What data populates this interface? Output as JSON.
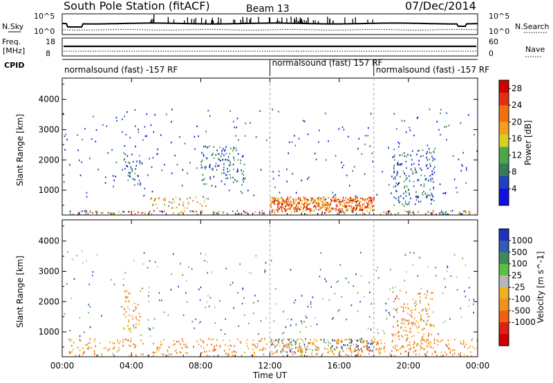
{
  "header": {
    "station": "South Pole Station (fitACF)",
    "beam": "Beam 13",
    "date": "07/Dec/2014"
  },
  "strip_panels": {
    "nsky": {
      "label": "N.Sky",
      "top_tick": "10^5",
      "bottom_tick": "10^0"
    },
    "nsearch": {
      "label": "N.Search",
      "top_tick": "10^5",
      "bottom_tick": "10^0"
    },
    "freq": {
      "label": "Freq.",
      "unit": "[MHz]",
      "top_tick": "18",
      "bottom_tick": "8"
    },
    "nave": {
      "label": "Nave",
      "top_tick": "60",
      "bottom_tick": "0"
    }
  },
  "cpid": {
    "label": "CPID",
    "segments": [
      {
        "text": "normalsound (fast) -157 RF",
        "start_hour": 0.0
      },
      {
        "text": "normalsound (fast) 157 RF",
        "start_hour": 12.0
      },
      {
        "text": "normalsound (fast) -157 RF",
        "start_hour": 18.0
      }
    ]
  },
  "colors": {
    "power": [
      "#1010e0",
      "#2040c0",
      "#3a7a5a",
      "#4aa84a",
      "#d8d020",
      "#f0a020",
      "#f07010",
      "#e03010",
      "#d00000"
    ],
    "velocity": [
      "#2030c0",
      "#2f5db0",
      "#3f8a5a",
      "#5cc040",
      "#b8b8b8",
      "#f0b020",
      "#f09020",
      "#f06010",
      "#e02010",
      "#d00000"
    ]
  },
  "chart_data": [
    {
      "type": "heatmap",
      "name": "power",
      "ylabel": "Slant Range [km]",
      "xlabel": "Time UT",
      "xlim": [
        0,
        24
      ],
      "ylim": [
        180,
        4700
      ],
      "x_ticks": [
        "00:00",
        "04:00",
        "08:00",
        "12:00",
        "16:00",
        "20:00",
        "00:00"
      ],
      "y_ticks": [
        1000,
        2000,
        3000,
        4000
      ],
      "colorbar": {
        "label": "Power [dB]",
        "ticks": [
          4,
          8,
          12,
          16,
          20,
          24,
          28
        ],
        "range": [
          0,
          30
        ]
      },
      "regions": [
        {
          "t0": 0.3,
          "t1": 24,
          "r0": 180,
          "r1": 350,
          "level": "mixed"
        },
        {
          "t0": 12.0,
          "t1": 18.0,
          "r0": 350,
          "r1": 800,
          "level": "high"
        },
        {
          "t0": 5.0,
          "t1": 8.5,
          "r0": 400,
          "r1": 800,
          "level": "mid"
        },
        {
          "t0": 3.5,
          "t1": 4.5,
          "r0": 1200,
          "r1": 2300,
          "level": "low"
        },
        {
          "t0": 8.0,
          "t1": 10.5,
          "r0": 1200,
          "r1": 2500,
          "level": "low"
        },
        {
          "t0": 19.0,
          "t1": 21.5,
          "r0": 500,
          "r1": 2400,
          "level": "low"
        }
      ]
    },
    {
      "type": "heatmap",
      "name": "velocity",
      "ylabel": "Slant Range [km]",
      "xlabel": "Time UT",
      "xlim": [
        0,
        24
      ],
      "ylim": [
        180,
        4700
      ],
      "x_ticks": [
        "00:00",
        "04:00",
        "08:00",
        "12:00",
        "16:00",
        "20:00",
        "00:00"
      ],
      "y_ticks": [
        1000,
        2000,
        3000,
        4000
      ],
      "colorbar": {
        "label": "Velocity [m s^-1]",
        "ticks": [
          "1000",
          "500",
          "100",
          "25",
          "-25",
          "-100",
          "-500",
          "-1000"
        ]
      },
      "regions": [
        {
          "t0": 0.3,
          "t1": 24,
          "r0": 180,
          "r1": 800,
          "level": "negative"
        },
        {
          "t0": 12.0,
          "t1": 18.0,
          "r0": 350,
          "r1": 800,
          "level": "mixed"
        },
        {
          "t0": 3.5,
          "t1": 4.5,
          "r0": 1000,
          "r1": 2400,
          "level": "negative"
        },
        {
          "t0": 19.0,
          "t1": 21.5,
          "r0": 500,
          "r1": 2400,
          "level": "negative"
        }
      ]
    }
  ]
}
